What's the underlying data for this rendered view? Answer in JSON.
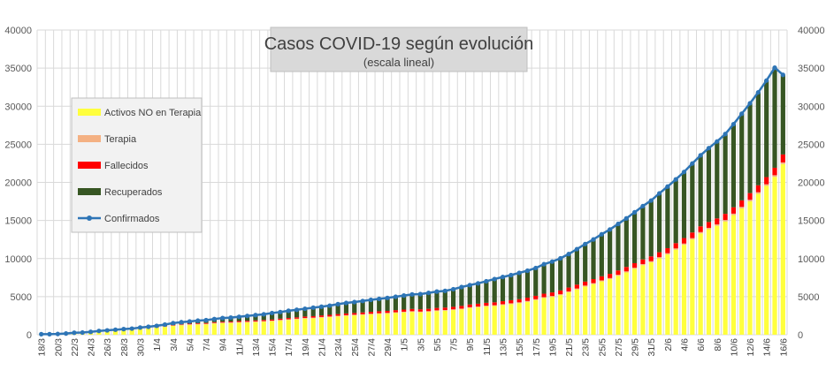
{
  "chart_data": {
    "type": "bar",
    "title": "Casos COVID-19 según evolución",
    "subtitle": "(escala lineal)",
    "xlabel": "",
    "ylabel": "",
    "ylim": [
      0,
      40000
    ],
    "yticks": [
      0,
      5000,
      10000,
      15000,
      20000,
      25000,
      30000,
      35000,
      40000
    ],
    "grid": true,
    "legend_position": "left",
    "colors": {
      "activos": "#FFFF3D",
      "terapia": "#F4B183",
      "fallecidos": "#FF0000",
      "recuperados": "#375623",
      "confirmados": "#2E75B6",
      "title_box": "#D9D9D9",
      "legend_box": "#F2F2F2",
      "grid": "#D9D9D9"
    },
    "categories": [
      "18/3",
      "19/3",
      "20/3",
      "21/3",
      "22/3",
      "23/3",
      "24/3",
      "25/3",
      "26/3",
      "27/3",
      "28/3",
      "29/3",
      "30/3",
      "31/3",
      "1/4",
      "2/4",
      "3/4",
      "4/4",
      "5/4",
      "6/4",
      "7/4",
      "8/4",
      "9/4",
      "10/4",
      "11/4",
      "12/4",
      "13/4",
      "14/4",
      "15/4",
      "16/4",
      "17/4",
      "18/4",
      "19/4",
      "20/4",
      "21/4",
      "22/4",
      "23/4",
      "24/4",
      "25/4",
      "26/4",
      "27/4",
      "28/4",
      "29/4",
      "30/4",
      "1/5",
      "2/5",
      "3/5",
      "4/5",
      "5/5",
      "6/5",
      "7/5",
      "8/5",
      "9/5",
      "10/5",
      "11/5",
      "12/5",
      "13/5",
      "14/5",
      "15/5",
      "16/5",
      "17/5",
      "18/5",
      "19/5",
      "20/5",
      "21/5",
      "22/5",
      "23/5",
      "24/5",
      "25/5",
      "26/5",
      "27/5",
      "28/5",
      "29/5",
      "30/5",
      "31/5",
      "1/6",
      "2/6",
      "3/6",
      "4/6",
      "5/6",
      "6/6",
      "7/6",
      "8/6",
      "9/6",
      "10/6",
      "11/6",
      "12/6",
      "13/6",
      "14/6",
      "15/6",
      "16/6"
    ],
    "series": [
      {
        "name": "Activos NO en Terapia",
        "kind": "bar-stack",
        "color_key": "activos",
        "values": [
          63,
          65,
          87,
          138,
          230,
          245,
          325,
          419,
          482,
          542,
          606,
          667,
          775,
          848,
          928,
          1028,
          1154,
          1234,
          1297,
          1343,
          1367,
          1466,
          1512,
          1530,
          1585,
          1618,
          1662,
          1706,
          1766,
          1862,
          1943,
          2020,
          2111,
          2154,
          2241,
          2305,
          2403,
          2476,
          2536,
          2599,
          2663,
          2732,
          2773,
          2858,
          2925,
          2993,
          2943,
          3000,
          3106,
          3147,
          3235,
          3329,
          3508,
          3602,
          3708,
          3767,
          3898,
          4017,
          4142,
          4318,
          4547,
          4817,
          4966,
          5199,
          5568,
          5940,
          6326,
          6645,
          7001,
          7303,
          7729,
          8173,
          8649,
          9130,
          9505,
          10023,
          10542,
          11166,
          11804,
          12512,
          13302,
          13854,
          14300,
          14869,
          15706,
          16585,
          17511,
          18501,
          19546,
          20723,
          22400
        ]
      },
      {
        "name": "Terapia",
        "kind": "bar-stack",
        "color_key": "terapia",
        "values": [
          5,
          6,
          8,
          12,
          20,
          25,
          30,
          34,
          38,
          40,
          44,
          48,
          52,
          55,
          60,
          65,
          68,
          70,
          72,
          75,
          78,
          80,
          82,
          83,
          84,
          85,
          85,
          85,
          86,
          87,
          88,
          88,
          89,
          90,
          90,
          91,
          91,
          92,
          92,
          93,
          93,
          94,
          95,
          96,
          97,
          97,
          98,
          99,
          100,
          100,
          101,
          102,
          103,
          104,
          105,
          106,
          108,
          110,
          112,
          114,
          116,
          118,
          120,
          122,
          124,
          126,
          128,
          130,
          133,
          136,
          139,
          142,
          145,
          148,
          152,
          156,
          160,
          164,
          168,
          172,
          176,
          180,
          184,
          188,
          192,
          197,
          202,
          207,
          212,
          217,
          222
        ]
      },
      {
        "name": "Fallecidos",
        "kind": "bar-stack",
        "color_key": "fallecidos",
        "values": [
          2,
          3,
          3,
          4,
          4,
          6,
          8,
          12,
          17,
          24,
          27,
          28,
          36,
          39,
          43,
          46,
          60,
          65,
          79,
          82,
          95,
          101,
          108,
          113,
          129,
          132,
          136,
          147,
          152,
          159,
          167,
          176,
          192,
          198,
          207,
          214,
          218,
          226,
          228,
          236,
          246,
          260,
          266,
          273,
          282,
          293,
          300,
          305,
          315,
          319,
          329,
          353,
          356,
          363,
          373,
          382,
          393,
          403,
          416,
          433,
          445,
          452,
          467,
          490,
          500,
          508,
          520,
          528,
          537,
          552,
          569,
          583,
          600,
          608,
          632,
          648,
          664,
          693,
          717,
          735,
          753,
          765,
          785,
          815,
          833,
          854,
          878,
          913,
          932,
          979,
          1043
        ]
      },
      {
        "name": "Recuperados",
        "kind": "bar-stack",
        "color_key": "recuperados",
        "values": [
          0,
          0,
          0,
          3,
          5,
          10,
          13,
          32,
          38,
          52,
          61,
          62,
          79,
          99,
          138,
          194,
          247,
          279,
          289,
          351,
          378,
          419,
          490,
          525,
          559,
          633,
          698,
          739,
          844,
          871,
          948,
          992,
          1020,
          1114,
          1142,
          1211,
          1300,
          1376,
          1434,
          1501,
          1579,
          1620,
          1700,
          1760,
          1839,
          1910,
          1990,
          2092,
          2148,
          2193,
          2313,
          2475,
          2546,
          2676,
          2837,
          3058,
          3183,
          3295,
          3455,
          3538,
          3650,
          3870,
          4051,
          4219,
          4398,
          4667,
          4934,
          5207,
          5518,
          5830,
          6110,
          6379,
          6677,
          7002,
          7325,
          7728,
          8081,
          8370,
          8683,
          9062,
          9320,
          9702,
          10098,
          10473,
          10915,
          11380,
          11791,
          12200,
          12682,
          13148,
          10452
        ]
      },
      {
        "name": "Confirmados",
        "kind": "line",
        "color_key": "confirmados",
        "values": [
          70,
          74,
          98,
          157,
          259,
          286,
          376,
          497,
          575,
          658,
          738,
          805,
          942,
          1041,
          1169,
          1333,
          1529,
          1648,
          1737,
          1851,
          1918,
          2066,
          2192,
          2251,
          2357,
          2468,
          2581,
          2677,
          2848,
          2979,
          3146,
          3276,
          3412,
          3556,
          3680,
          3821,
          4012,
          4170,
          4290,
          4429,
          4581,
          4706,
          4834,
          4987,
          5143,
          5293,
          5331,
          5496,
          5669,
          5759,
          5978,
          6259,
          6513,
          6745,
          7023,
          7313,
          7582,
          7825,
          8125,
          8403,
          8758,
          9257,
          9604,
          10030,
          10590,
          11241,
          11908,
          12510,
          13189,
          13821,
          14547,
          15277,
          16071,
          16888,
          17614,
          18555,
          19447,
          20393,
          21372,
          22481,
          23551,
          24501,
          25367,
          26345,
          27646,
          29016,
          30382,
          31821,
          33372,
          35067,
          34117
        ]
      }
    ],
    "legend": [
      {
        "label": "Activos NO en Terapia",
        "color_key": "activos",
        "marker": "bar"
      },
      {
        "label": "Terapia",
        "color_key": "terapia",
        "marker": "bar"
      },
      {
        "label": "Fallecidos",
        "color_key": "fallecidos",
        "marker": "bar"
      },
      {
        "label": "Recuperados",
        "color_key": "recuperados",
        "marker": "bar"
      },
      {
        "label": "Confirmados",
        "color_key": "confirmados",
        "marker": "line"
      }
    ]
  }
}
